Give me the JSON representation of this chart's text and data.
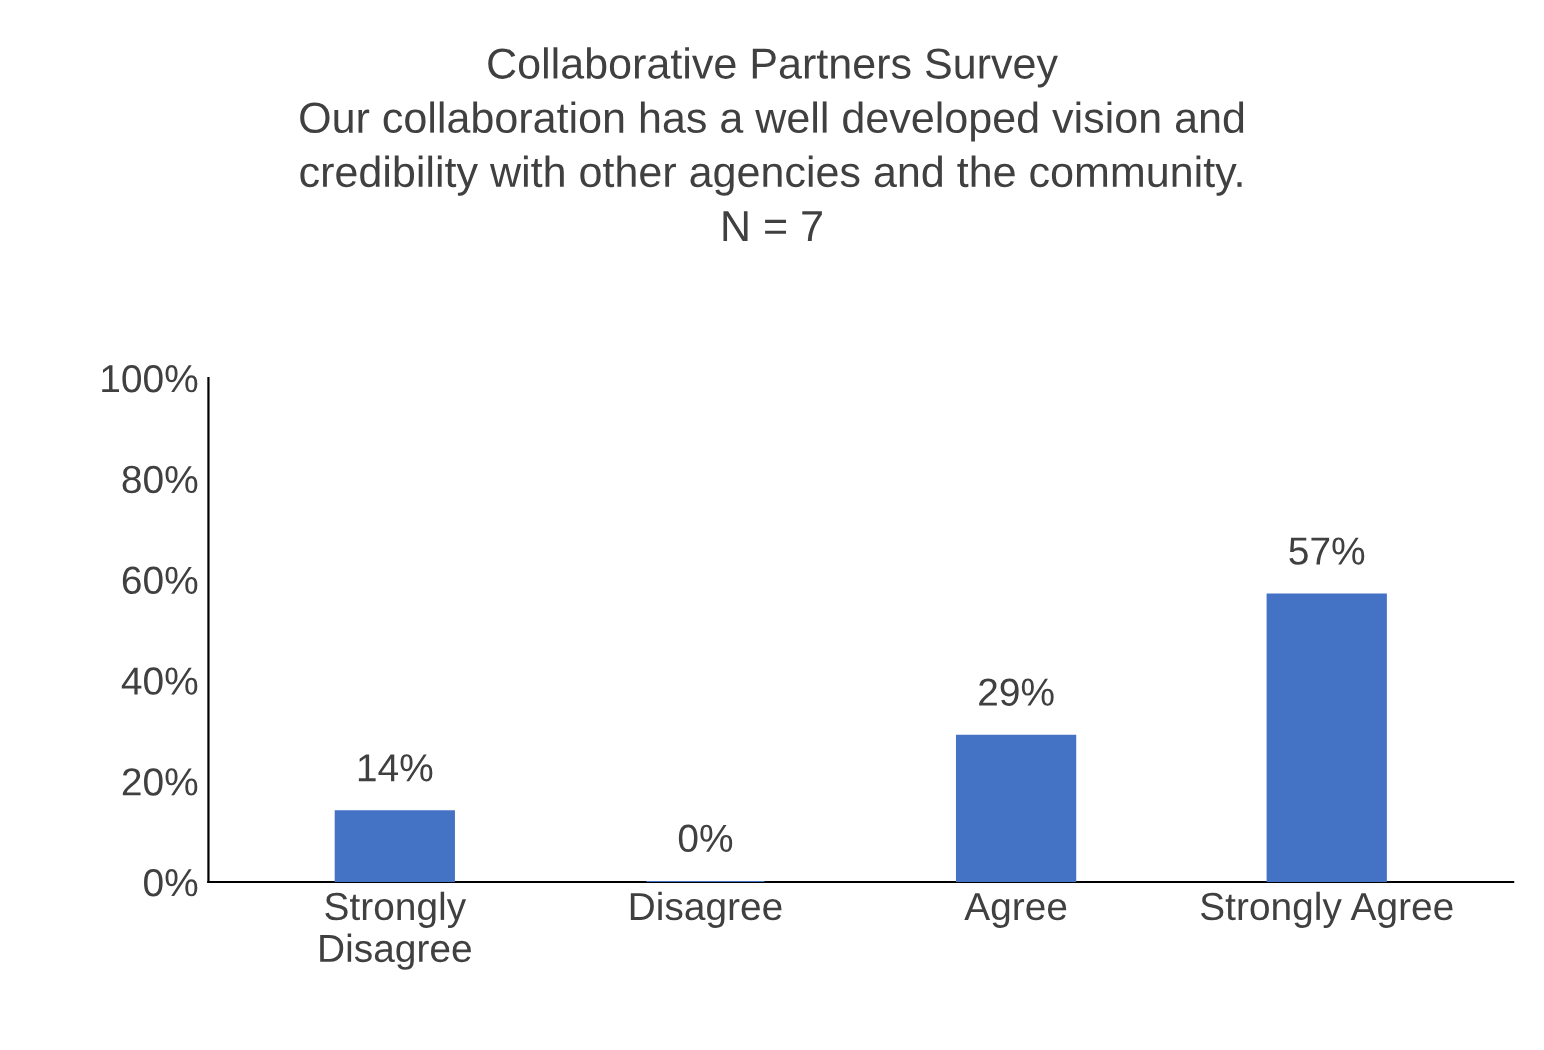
{
  "chart_data": {
    "type": "bar",
    "title": "Collaborative Partners Survey\nOur collaboration has a well developed vision and\ncredibility with other agencies and the community.\nN = 7",
    "categories": [
      "Strongly\nDisagree",
      "Disagree",
      "Agree",
      "Strongly Agree"
    ],
    "values": [
      14,
      0,
      29,
      57
    ],
    "value_labels": [
      "14%",
      "0%",
      "29%",
      "57%"
    ],
    "color": "#4472c4",
    "ylim": [
      0,
      100
    ],
    "yticks": [
      {
        "value": 0,
        "label": "0%"
      },
      {
        "value": 20,
        "label": "20%"
      },
      {
        "value": 40,
        "label": "40%"
      },
      {
        "value": 60,
        "label": "60%"
      },
      {
        "value": 80,
        "label": "80%"
      },
      {
        "value": 100,
        "label": "100%"
      }
    ],
    "grid": false,
    "legend": false
  }
}
